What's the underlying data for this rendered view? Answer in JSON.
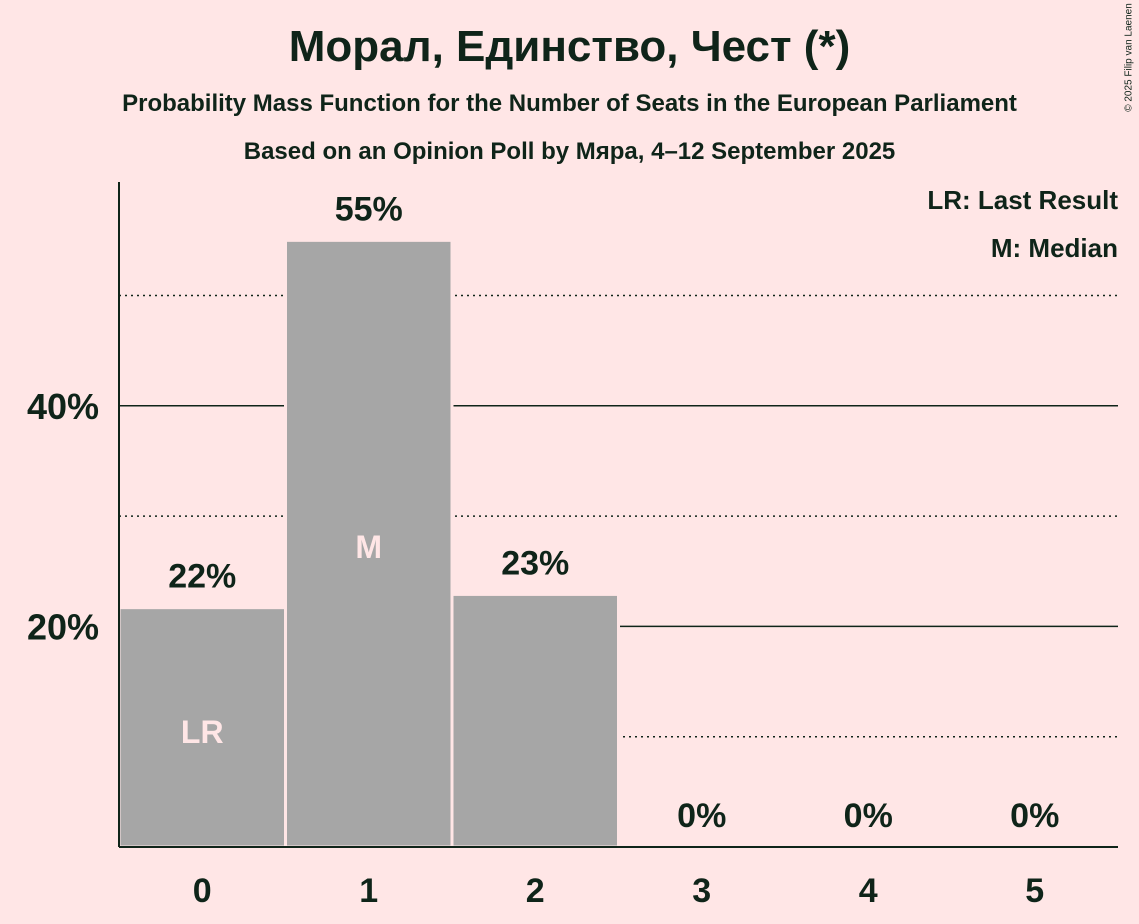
{
  "chart_data": {
    "type": "bar",
    "title": "Морал, Единство, Чест (*)",
    "subtitle": "Probability Mass Function for the Number of Seats in the European Parliament",
    "subtitle2": "Based on an Opinion Poll by Мяра, 4–12 September 2025",
    "categories": [
      "0",
      "1",
      "2",
      "3",
      "4",
      "5"
    ],
    "values": [
      21.7,
      55,
      22.9,
      0,
      0,
      0
    ],
    "data_labels": [
      "22%",
      "55%",
      "23%",
      "0%",
      "0%",
      "0%"
    ],
    "bar_markers": [
      "LR",
      "M",
      "",
      "",
      "",
      ""
    ],
    "ylim": [
      0,
      60
    ],
    "yticks": [
      {
        "value": 20,
        "label": "20%"
      },
      {
        "value": 40,
        "label": "40%"
      }
    ],
    "minor_gridlines": [
      10,
      30,
      50
    ],
    "legend": [
      "LR: Last Result",
      "M: Median"
    ],
    "legend_position": "top-right",
    "xlabel": "",
    "ylabel": ""
  },
  "copyright": "© 2025 Filip van Laenen",
  "colors": {
    "background": "#FFE6E6",
    "bar": "#A6A6A6",
    "text": "#0F2419",
    "marker": "#FFE6E6"
  }
}
